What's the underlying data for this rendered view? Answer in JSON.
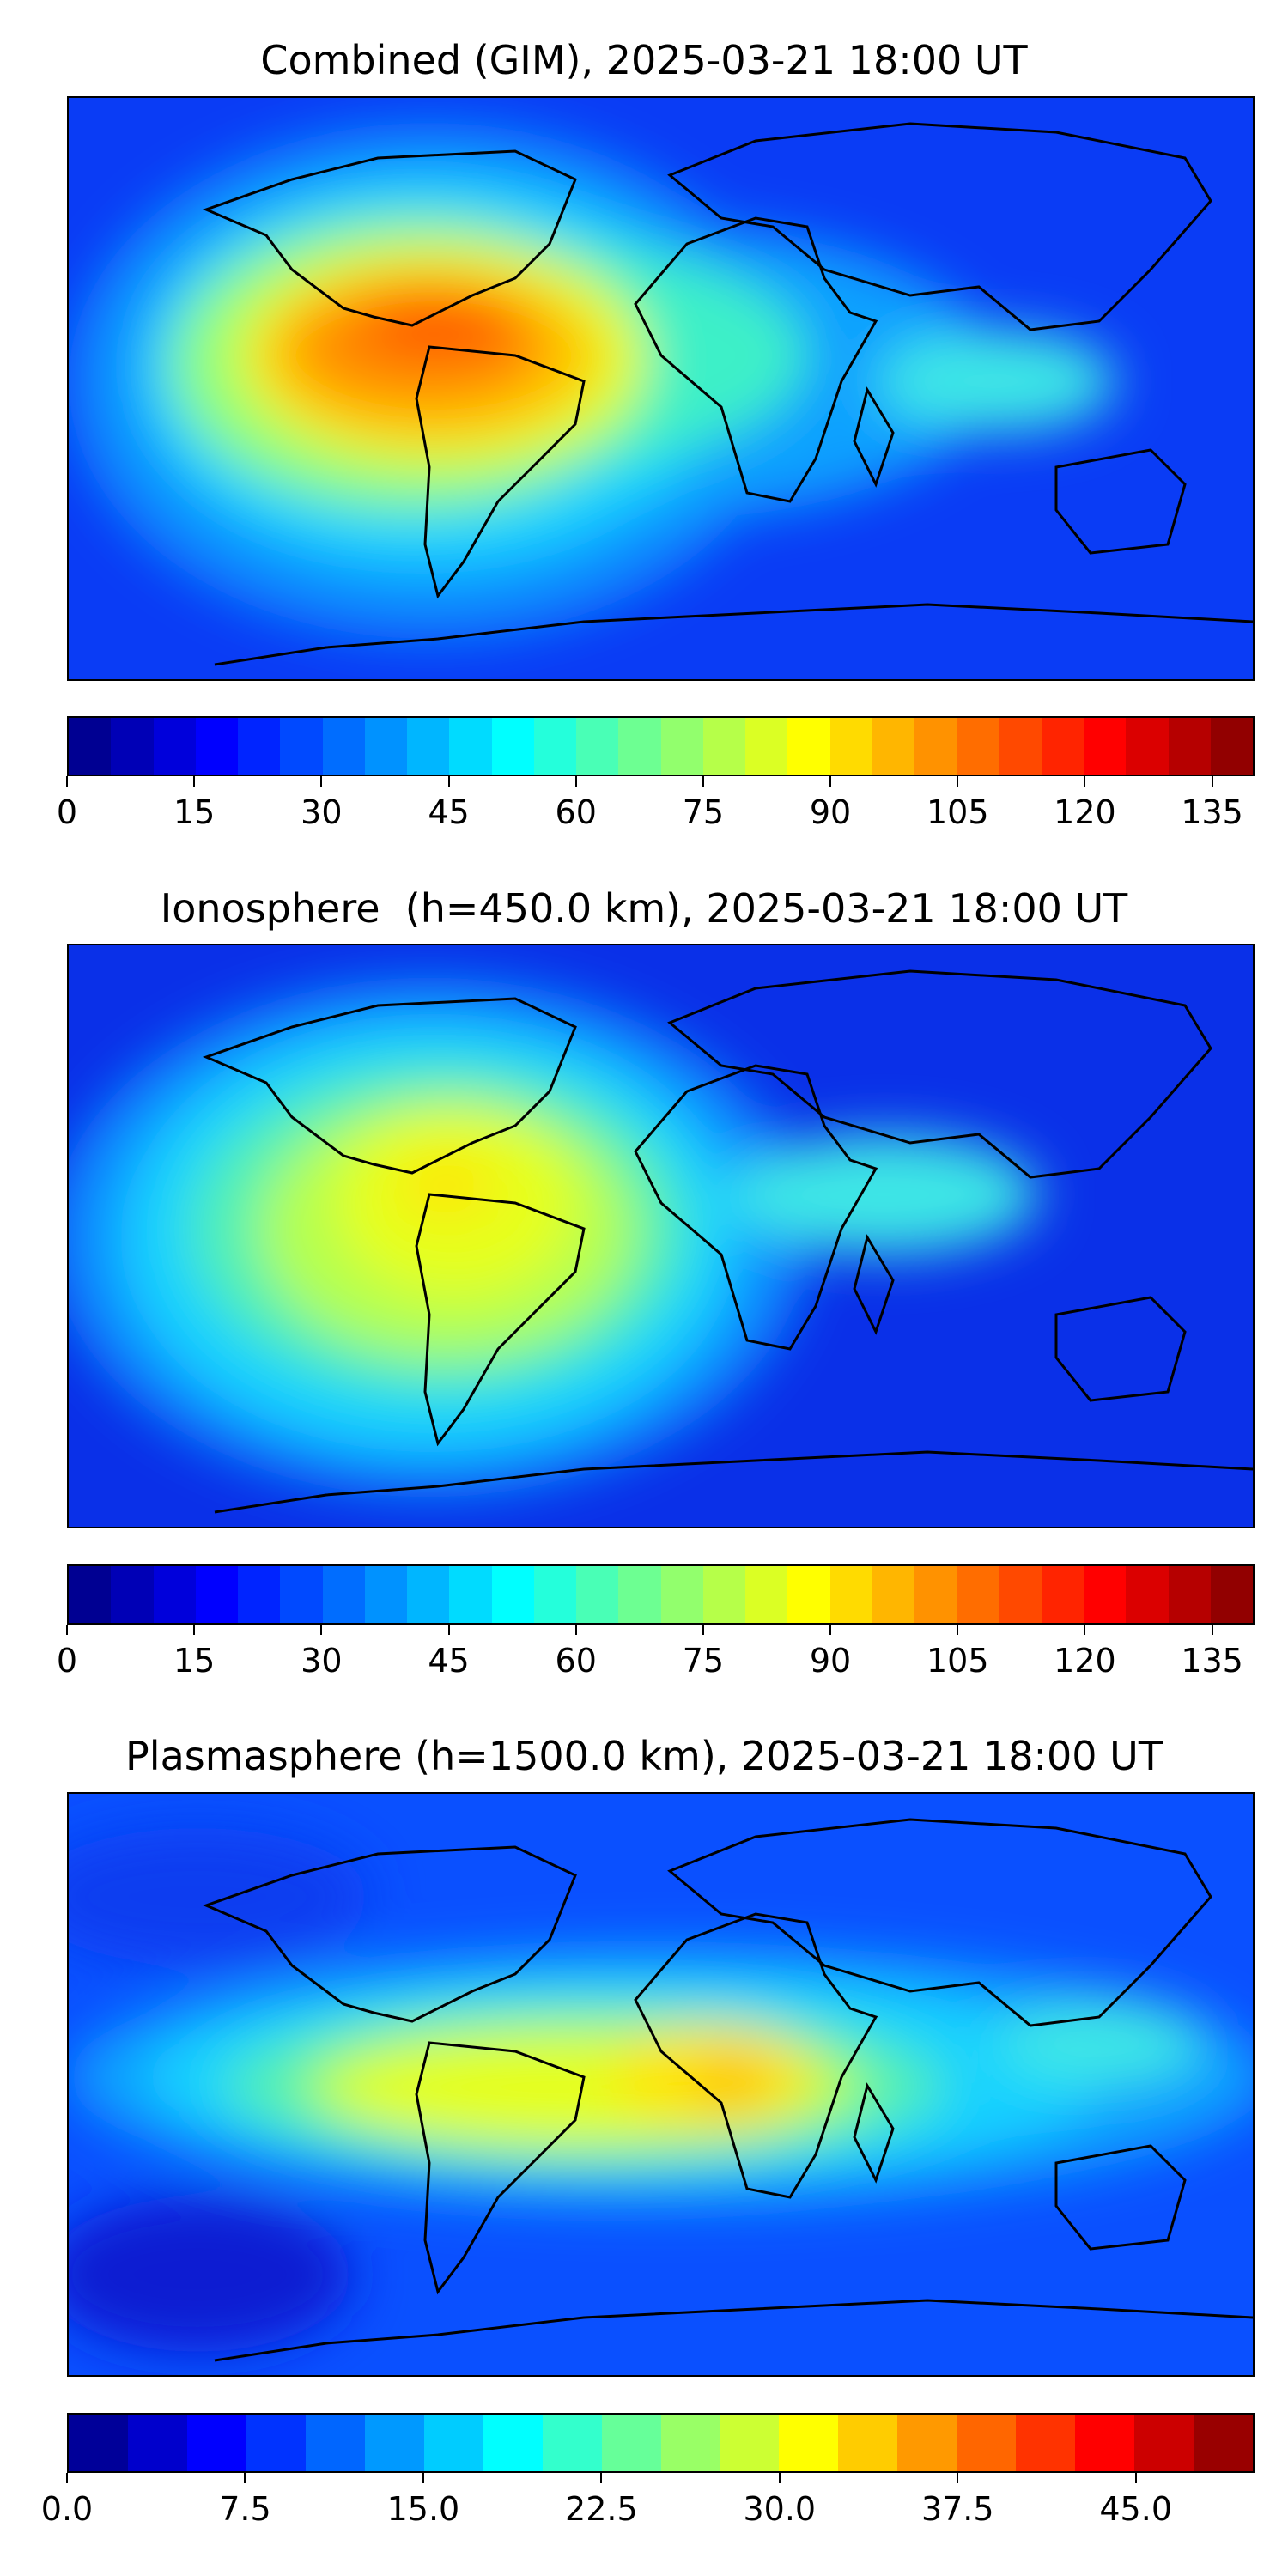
{
  "figure": {
    "panels": [
      {
        "title": "Combined (GIM), 2025-03-21 18:00 UT",
        "colorbar": {
          "min": 0,
          "max": 140,
          "levels": 28,
          "tick_labels": [
            "0",
            "15",
            "30",
            "45",
            "60",
            "75",
            "90",
            "105",
            "120",
            "135"
          ],
          "tick_values": [
            0,
            15,
            30,
            45,
            60,
            75,
            90,
            105,
            120,
            135
          ]
        }
      },
      {
        "title": "Ionosphere  (h=450.0 km), 2025-03-21 18:00 UT",
        "colorbar": {
          "min": 0,
          "max": 140,
          "levels": 28,
          "tick_labels": [
            "0",
            "15",
            "30",
            "45",
            "60",
            "75",
            "90",
            "105",
            "120",
            "135"
          ],
          "tick_values": [
            0,
            15,
            30,
            45,
            60,
            75,
            90,
            105,
            120,
            135
          ]
        }
      },
      {
        "title": "Plasmasphere (h=1500.0 km), 2025-03-21 18:00 UT",
        "colorbar": {
          "min": 0,
          "max": 50,
          "levels": 20,
          "tick_labels": [
            "0.0",
            "7.5",
            "15.0",
            "22.5",
            "30.0",
            "37.5",
            "45.0"
          ],
          "tick_values": [
            0,
            7.5,
            15,
            22.5,
            30,
            37.5,
            45
          ]
        }
      }
    ],
    "colormap": "jet",
    "colors": {
      "background": "#0a3cf5",
      "coastline": "#000000"
    }
  }
}
